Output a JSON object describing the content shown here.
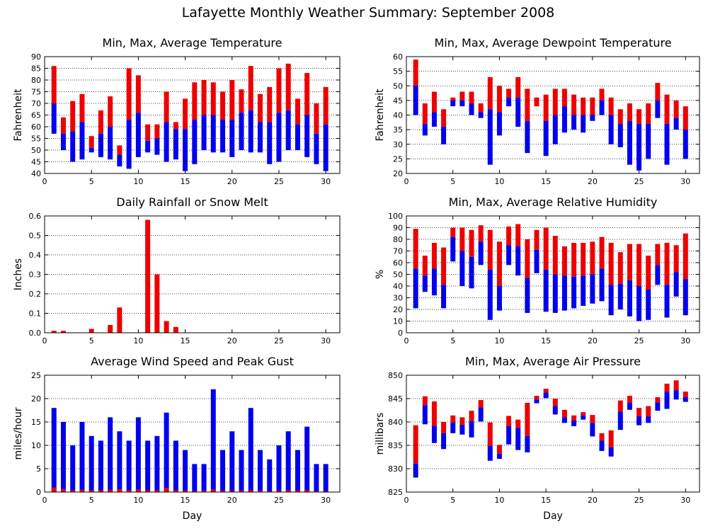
{
  "title": "Lafayette Monthly Weather Summary: September 2008",
  "colors": {
    "max": "#ee0000",
    "min": "#0000ee",
    "frame": "#000000",
    "grid": "#000000"
  },
  "chart_data": [
    {
      "id": "temperature",
      "type": "bar",
      "style": "minmax-range",
      "title": "Min, Max, Average Temperature",
      "xlabel": "",
      "ylabel": "Fahrenheit",
      "xlim": [
        0,
        31.5
      ],
      "xticks": [
        0,
        5,
        10,
        15,
        20,
        25,
        30
      ],
      "ylim": [
        40,
        90
      ],
      "yticks": [
        40,
        45,
        50,
        55,
        60,
        65,
        70,
        75,
        80,
        85,
        90
      ],
      "grid": true,
      "x": [
        1,
        2,
        3,
        4,
        5,
        6,
        7,
        8,
        9,
        10,
        11,
        12,
        13,
        14,
        15,
        16,
        17,
        18,
        19,
        20,
        21,
        22,
        23,
        24,
        25,
        26,
        27,
        28,
        29,
        30
      ],
      "series": [
        {
          "name": "Max",
          "values": [
            86,
            64,
            71,
            74,
            56,
            67,
            73,
            52,
            85,
            82,
            61,
            61,
            75,
            62,
            72,
            79,
            80,
            79,
            75,
            80,
            76,
            86,
            74,
            77,
            85,
            87,
            72,
            83,
            70,
            77
          ]
        },
        {
          "name": "Average",
          "values": [
            70,
            57,
            58,
            62,
            51,
            57,
            60,
            48,
            63,
            66,
            54,
            55,
            62,
            59,
            59,
            63,
            65,
            65,
            63,
            63,
            66,
            67,
            62,
            62,
            66,
            67,
            61,
            65,
            57,
            61
          ]
        },
        {
          "name": "Min",
          "values": [
            57,
            50,
            45,
            46,
            49,
            47,
            46,
            43,
            42,
            47,
            49,
            48,
            45,
            46,
            41,
            44,
            50,
            49,
            49,
            47,
            50,
            49,
            49,
            44,
            45,
            50,
            50,
            47,
            44,
            41
          ]
        }
      ]
    },
    {
      "id": "dewpoint",
      "type": "bar",
      "style": "minmax-range",
      "title": "Min, Max, Average Dewpoint Temperature",
      "xlabel": "",
      "ylabel": "Fahrenheit",
      "xlim": [
        0,
        31.5
      ],
      "xticks": [
        0,
        5,
        10,
        15,
        20,
        25,
        30
      ],
      "ylim": [
        20,
        60
      ],
      "yticks": [
        20,
        25,
        30,
        35,
        40,
        45,
        50,
        55,
        60
      ],
      "grid": true,
      "x": [
        1,
        2,
        3,
        4,
        5,
        6,
        7,
        8,
        9,
        10,
        11,
        12,
        13,
        14,
        15,
        16,
        17,
        18,
        19,
        20,
        21,
        22,
        23,
        24,
        25,
        26,
        27,
        28,
        29,
        30
      ],
      "series": [
        {
          "name": "Max",
          "values": [
            59,
            44,
            48,
            42,
            46,
            48,
            48,
            44,
            53,
            50,
            49,
            53,
            49,
            46,
            47,
            49,
            49,
            47,
            46,
            46,
            49,
            46,
            42,
            44,
            42,
            44,
            51,
            47,
            45,
            43
          ]
        },
        {
          "name": "Average",
          "values": [
            50,
            37,
            41,
            36,
            45,
            45,
            44,
            41,
            42,
            41,
            46,
            46,
            38,
            43,
            38,
            40,
            43,
            40,
            40,
            40,
            45,
            40,
            37,
            38,
            37,
            37,
            45,
            37,
            39,
            35
          ]
        },
        {
          "name": "Min",
          "values": [
            40,
            33,
            36,
            30,
            43,
            43,
            40,
            39,
            23,
            33,
            43,
            36,
            27,
            43,
            26,
            30,
            34,
            35,
            34,
            38,
            40,
            30,
            29,
            23,
            21,
            25,
            39,
            23,
            35,
            25
          ]
        }
      ]
    },
    {
      "id": "rainfall",
      "type": "bar",
      "title": "Daily Rainfall or Snow Melt",
      "xlabel": "",
      "ylabel": "Inches",
      "xlim": [
        0,
        31.5
      ],
      "xticks": [
        0,
        5,
        10,
        15,
        20,
        25,
        30
      ],
      "ylim": [
        0,
        0.6
      ],
      "yticks": [
        0,
        0.1,
        0.2,
        0.3,
        0.4,
        0.5,
        0.6
      ],
      "ytick_labels": [
        "0.0",
        "0.1",
        "0.2",
        "0.3",
        "0.4",
        "0.5",
        "0.6"
      ],
      "grid": true,
      "x": [
        1,
        2,
        3,
        4,
        5,
        6,
        7,
        8,
        9,
        10,
        11,
        12,
        13,
        14,
        15,
        16,
        17,
        18,
        19,
        20,
        21,
        22,
        23,
        24,
        25,
        26,
        27,
        28,
        29,
        30
      ],
      "series": [
        {
          "name": "Rainfall",
          "values": [
            0.01,
            0.01,
            0,
            0,
            0.02,
            0,
            0.04,
            0.13,
            0,
            0,
            0.58,
            0.3,
            0.06,
            0.03,
            0,
            0,
            0,
            0,
            0,
            0,
            0,
            0,
            0,
            0,
            0,
            0,
            0,
            0,
            0,
            0
          ]
        }
      ]
    },
    {
      "id": "humidity",
      "type": "bar",
      "style": "minmax-range",
      "title": "Min, Max, Average Relative Humidity",
      "xlabel": "",
      "ylabel": "%",
      "xlim": [
        0,
        31.5
      ],
      "xticks": [
        0,
        5,
        10,
        15,
        20,
        25,
        30
      ],
      "ylim": [
        0,
        100
      ],
      "yticks": [
        0,
        10,
        20,
        30,
        40,
        50,
        60,
        70,
        80,
        90,
        100
      ],
      "grid": true,
      "x": [
        1,
        2,
        3,
        4,
        5,
        6,
        7,
        8,
        9,
        10,
        11,
        12,
        13,
        14,
        15,
        16,
        17,
        18,
        19,
        20,
        21,
        22,
        23,
        24,
        25,
        26,
        27,
        28,
        29,
        30
      ],
      "series": [
        {
          "name": "Max",
          "values": [
            89,
            66,
            77,
            73,
            90,
            90,
            88,
            92,
            88,
            78,
            91,
            93,
            80,
            88,
            90,
            83,
            74,
            77,
            77,
            78,
            82,
            77,
            69,
            76,
            76,
            66,
            76,
            77,
            75,
            85
          ]
        },
        {
          "name": "Average",
          "values": [
            55,
            49,
            55,
            41,
            82,
            70,
            65,
            78,
            54,
            40,
            75,
            74,
            47,
            71,
            54,
            50,
            49,
            48,
            49,
            50,
            55,
            41,
            42,
            45,
            40,
            37,
            58,
            41,
            52,
            46
          ]
        },
        {
          "name": "Min",
          "values": [
            21,
            35,
            32,
            21,
            61,
            40,
            38,
            58,
            11,
            19,
            58,
            49,
            17,
            51,
            18,
            17,
            19,
            21,
            23,
            25,
            27,
            15,
            20,
            14,
            10,
            11,
            41,
            13,
            31,
            15
          ]
        }
      ]
    },
    {
      "id": "wind",
      "type": "bar",
      "style": "stacked-overlay",
      "title": "Average Wind Speed and Peak Gust",
      "xlabel": "Day",
      "ylabel": "miles/hour",
      "xlim": [
        0,
        31.5
      ],
      "xticks": [
        0,
        5,
        10,
        15,
        20,
        25,
        30
      ],
      "ylim": [
        0,
        25
      ],
      "yticks": [
        0,
        5,
        10,
        15,
        20,
        25
      ],
      "grid": true,
      "x": [
        1,
        2,
        3,
        4,
        5,
        6,
        7,
        8,
        9,
        10,
        11,
        12,
        13,
        14,
        15,
        16,
        17,
        18,
        19,
        20,
        21,
        22,
        23,
        24,
        25,
        26,
        27,
        28,
        29,
        30
      ],
      "series": [
        {
          "name": "Peak Gust",
          "values": [
            18,
            15,
            10,
            15,
            12,
            11,
            16,
            13,
            11,
            16,
            11,
            12,
            17,
            11,
            9,
            6,
            6,
            22,
            9,
            13,
            9,
            18,
            9,
            7,
            10,
            13,
            9,
            14,
            6,
            6
          ]
        },
        {
          "name": "Average Wind Speed",
          "values": [
            1,
            0.6,
            0.4,
            0.5,
            0.4,
            0.4,
            0.5,
            0.6,
            0.4,
            0.6,
            0.4,
            0.4,
            0.9,
            0.4,
            0.3,
            0.2,
            0.3,
            0.6,
            0.3,
            0.3,
            0.3,
            0.4,
            0.3,
            0.2,
            0.3,
            0.4,
            0.3,
            0.4,
            0.2,
            0.2
          ]
        }
      ]
    },
    {
      "id": "pressure",
      "type": "bar",
      "style": "minmax-range",
      "title": "Min, Max, Average Air Pressure",
      "xlabel": "Day",
      "ylabel": "millibars",
      "xlim": [
        0,
        31.5
      ],
      "xticks": [
        0,
        5,
        10,
        15,
        20,
        25,
        30
      ],
      "ylim": [
        825,
        850
      ],
      "yticks": [
        825,
        830,
        835,
        840,
        845,
        850
      ],
      "grid": true,
      "x": [
        1,
        2,
        3,
        4,
        5,
        6,
        7,
        8,
        9,
        10,
        11,
        12,
        13,
        14,
        15,
        16,
        17,
        18,
        19,
        20,
        21,
        22,
        23,
        24,
        25,
        26,
        27,
        28,
        29,
        30
      ],
      "series": [
        {
          "name": "Max",
          "values": [
            839.3,
            845.5,
            844.4,
            840.0,
            841.4,
            841.0,
            842.4,
            844.7,
            839.9,
            835.1,
            841.3,
            840.5,
            844.1,
            845.6,
            847.1,
            845.0,
            842.6,
            841.4,
            842.1,
            841.5,
            837.6,
            838.2,
            844.6,
            845.6,
            843.0,
            843.4,
            845.3,
            848.2,
            848.9,
            846.5
          ]
        },
        {
          "name": "Average",
          "values": [
            831.1,
            843.6,
            839.2,
            837.6,
            839.9,
            839.4,
            840.2,
            843.1,
            834.9,
            833.2,
            839.1,
            838.7,
            837.0,
            844.8,
            846.3,
            843.4,
            841.0,
            840.3,
            841.4,
            839.8,
            836.0,
            834.6,
            842.2,
            844.1,
            841.2,
            841.2,
            844.2,
            846.5,
            846.8,
            845.3
          ]
        },
        {
          "name": "Min",
          "values": [
            828.1,
            839.5,
            835.5,
            834.2,
            837.6,
            837.3,
            836.7,
            840.1,
            831.7,
            832.1,
            835.2,
            834.0,
            833.5,
            844.0,
            845.1,
            841.6,
            839.8,
            839.1,
            840.5,
            836.9,
            833.8,
            832.6,
            838.3,
            842.6,
            839.3,
            839.8,
            842.4,
            842.8,
            844.8,
            844.3
          ]
        }
      ]
    }
  ]
}
